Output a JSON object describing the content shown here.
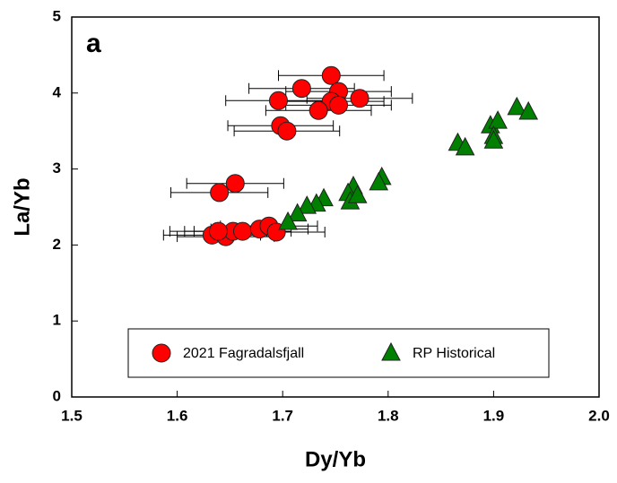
{
  "chart_data": {
    "type": "scatter",
    "panel_label": "a",
    "x_label": "Dy/Yb",
    "y_label": "La/Yb",
    "xlim": [
      1.5,
      2.0
    ],
    "ylim": [
      0,
      5
    ],
    "xticks": [
      {
        "value": 1.5,
        "label": "1.5"
      },
      1.6,
      1.7,
      1.8,
      1.9,
      {
        "value": 2.0,
        "label": "2.0"
      }
    ],
    "yticks": [
      0,
      1,
      2,
      3,
      4,
      5
    ],
    "series": [
      {
        "name": "2021 Fagradalsfjall",
        "color": "#ff0000",
        "marker": "circle",
        "x": [
          1.746,
          1.718,
          1.753,
          1.696,
          1.746,
          1.753,
          1.773,
          1.734,
          1.698,
          1.704,
          1.655,
          1.64,
          1.633,
          1.646,
          1.653,
          1.662,
          1.678,
          1.687,
          1.694,
          1.639
        ],
        "values": [
          4.23,
          4.06,
          4.02,
          3.9,
          3.89,
          3.84,
          3.93,
          3.77,
          3.57,
          3.5,
          2.81,
          2.69,
          2.13,
          2.11,
          2.18,
          2.18,
          2.21,
          2.25,
          2.17,
          2.18
        ],
        "xerr": [
          0.05,
          0.05,
          0.05,
          0.05,
          0.05,
          0.05,
          0.05,
          0.05,
          0.05,
          0.05,
          0.046,
          0.046,
          0.046,
          0.046,
          0.046,
          0.046,
          0.046,
          0.046,
          0.046,
          0.046
        ]
      },
      {
        "name": "RP Historical",
        "color": "#008000",
        "marker": "triangle",
        "x": [
          1.922,
          1.933,
          1.897,
          1.904,
          1.9,
          1.9,
          1.866,
          1.873,
          1.794,
          1.791,
          1.767,
          1.762,
          1.764,
          1.771,
          1.739,
          1.732,
          1.723,
          1.714,
          1.705
        ],
        "values": [
          3.81,
          3.75,
          3.57,
          3.63,
          3.43,
          3.37,
          3.34,
          3.28,
          2.89,
          2.82,
          2.77,
          2.68,
          2.57,
          2.65,
          2.61,
          2.54,
          2.51,
          2.41,
          2.3
        ]
      }
    ]
  }
}
